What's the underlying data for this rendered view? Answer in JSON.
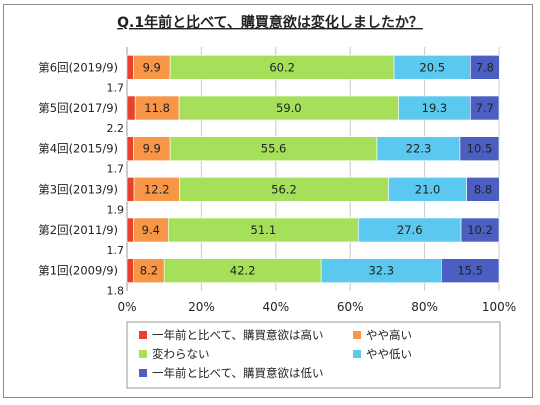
{
  "chart_data": {
    "type": "bar",
    "orientation": "horizontal",
    "stacked": "percent",
    "title": "Q.1年前と比べて、購買意欲は変化しましたか？",
    "categories": [
      "第6回(2019/9)",
      "第5回(2017/9)",
      "第4回(2015/9)",
      "第3回(2013/9)",
      "第2回(2011/9)",
      "第1回(2009/9)"
    ],
    "series": [
      {
        "name": "一年前と比べて、購買意欲は高い",
        "color": "#e8412c",
        "values": [
          1.7,
          2.2,
          1.7,
          1.9,
          1.7,
          1.8
        ]
      },
      {
        "name": "やや高い",
        "color": "#f79646",
        "values": [
          9.9,
          11.8,
          9.9,
          12.2,
          9.4,
          8.2
        ]
      },
      {
        "name": "変わらない",
        "color": "#a6e05a",
        "values": [
          60.2,
          59.0,
          55.6,
          56.2,
          51.1,
          42.2
        ]
      },
      {
        "name": "やや低い",
        "color": "#5bc8f0",
        "values": [
          20.5,
          19.3,
          22.3,
          21.0,
          27.6,
          32.3
        ]
      },
      {
        "name": "一年前と比べて、購買意欲は低い",
        "color": "#4a5fc1",
        "values": [
          7.8,
          7.7,
          10.5,
          8.8,
          10.2,
          15.5
        ]
      }
    ],
    "value_labels": [
      [
        "1.7",
        "9.9",
        "60.2",
        "20.5",
        "7.8"
      ],
      [
        "2.2",
        "11.8",
        "59.0",
        "19.3",
        "7.7"
      ],
      [
        "1.7",
        "9.9",
        "55.6",
        "22.3",
        "10.5"
      ],
      [
        "1.9",
        "12.2",
        "56.2",
        "21.0",
        "8.8"
      ],
      [
        "1.7",
        "9.4",
        "51.1",
        "27.6",
        "10.2"
      ],
      [
        "1.8",
        "8.2",
        "42.2",
        "32.3",
        "15.5"
      ]
    ],
    "xlim": [
      0,
      100
    ],
    "xticks": [
      "0%",
      "20%",
      "40%",
      "60%",
      "80%",
      "100%"
    ],
    "grid": true,
    "legend": "bottom"
  }
}
